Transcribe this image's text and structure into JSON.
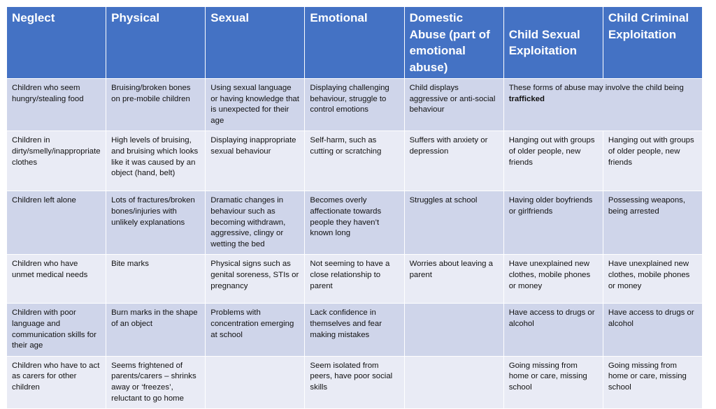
{
  "headers": [
    "Neglect",
    "Physical",
    "Sexual",
    "Emotional",
    "Domestic Abuse (part of emotional abuse)",
    "Child Sexual Exploitation",
    "Child Criminal Exploitation"
  ],
  "rows": [
    {
      "neglect": "Children who seem hungry/stealing food",
      "physical": "Bruising/broken bones on pre-mobile children",
      "sexual": "Using sexual language or having knowledge that is unexpected for their age",
      "emotional": "Displaying challenging behaviour, struggle to control emotions",
      "domestic": "Child displays aggressive or anti-social behaviour",
      "exploitation_note": "These forms of abuse may involve the child being",
      "exploitation_note_bold": "trafficked"
    },
    {
      "neglect": "Children in dirty/smelly/inappropriate clothes",
      "physical": "High levels of bruising, and bruising which looks like it was caused by an object (hand, belt)",
      "sexual": "Displaying inappropriate sexual behaviour",
      "emotional": "Self-harm, such as cutting or scratching",
      "domestic": "Suffers with anxiety or depression",
      "cse": "Hanging out with groups of older people, new friends",
      "cce": "Hanging out with groups of older people, new friends"
    },
    {
      "neglect": "Children left alone",
      "physical": "Lots of fractures/broken bones/injuries with unlikely explanations",
      "sexual": "Dramatic changes in behaviour such as becoming withdrawn, aggressive, clingy or wetting the bed",
      "emotional": "Becomes overly affectionate towards people they haven’t known long",
      "domestic": "Struggles at school",
      "cse": "Having older boyfriends or girlfriends",
      "cce": "Possessing weapons, being arrested"
    },
    {
      "neglect": "Children who have unmet medical needs",
      "physical": "Bite marks",
      "sexual": "Physical signs such as genital soreness, STIs or pregnancy",
      "emotional": "Not seeming to have a close relationship to parent",
      "domestic": "Worries about leaving a parent",
      "cse": "Have unexplained new clothes, mobile phones or money",
      "cce": "Have unexplained new clothes, mobile phones or money"
    },
    {
      "neglect": "Children with poor language and communication skills for their age",
      "physical": "Burn marks in the shape of an object",
      "sexual": "Problems with concentration emerging at school",
      "emotional": "Lack confidence in themselves and fear making mistakes",
      "domestic": "",
      "cse": "Have access to drugs or alcohol",
      "cce": "Have access to drugs or alcohol"
    },
    {
      "neglect": "Children who have to act as carers for other children",
      "physical": "Seems frightened of parents/carers – shrinks away or ‘freezes’, reluctant to go home",
      "sexual": "",
      "emotional": "Seem isolated from peers, have poor social skills",
      "domestic": "",
      "cse": "Going missing from home or care, missing school",
      "cce": "Going missing from home or care, missing school"
    }
  ]
}
